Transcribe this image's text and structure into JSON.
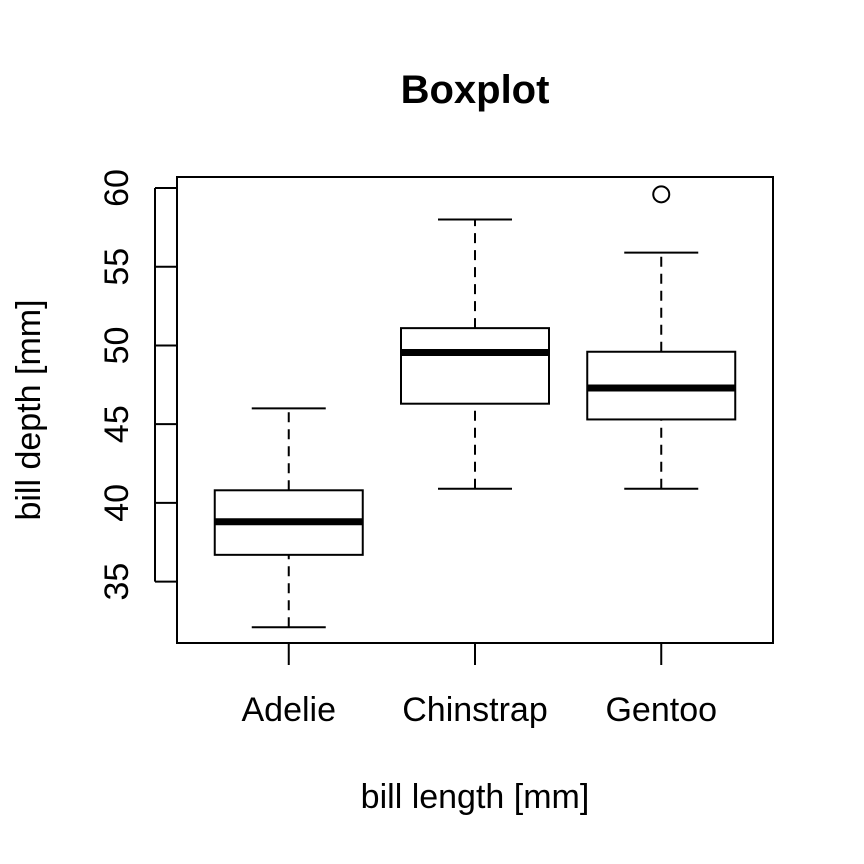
{
  "chart_data": {
    "type": "boxplot",
    "title": "Boxplot",
    "xlabel": "bill length [mm]",
    "ylabel": "bill depth [mm]",
    "categories": [
      "Adelie",
      "Chinstrap",
      "Gentoo"
    ],
    "yticks": [
      35,
      40,
      45,
      50,
      55,
      60
    ],
    "ylim": [
      31.1,
      60.7
    ],
    "grid": false,
    "boxes": [
      {
        "category": "Adelie",
        "whisker_low": 32.1,
        "q1": 36.7,
        "median": 38.8,
        "q3": 40.8,
        "whisker_high": 46.0,
        "outliers": []
      },
      {
        "category": "Chinstrap",
        "whisker_low": 40.9,
        "q1": 46.3,
        "median": 49.55,
        "q3": 51.1,
        "whisker_high": 58.0,
        "outliers": []
      },
      {
        "category": "Gentoo",
        "whisker_low": 40.9,
        "q1": 45.3,
        "median": 47.3,
        "q3": 49.6,
        "whisker_high": 55.9,
        "outliers": [
          59.6
        ]
      }
    ]
  }
}
